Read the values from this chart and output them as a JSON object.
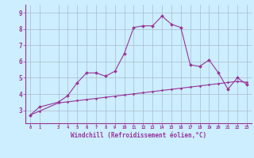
{
  "xlabel": "Windchill (Refroidissement éolien,°C)",
  "x_values": [
    0,
    1,
    3,
    4,
    5,
    6,
    7,
    8,
    9,
    10,
    11,
    12,
    13,
    14,
    15,
    16,
    17,
    18,
    19,
    20,
    21,
    22,
    23
  ],
  "y_main": [
    2.7,
    3.2,
    3.5,
    3.9,
    4.7,
    5.3,
    5.3,
    5.1,
    5.4,
    6.5,
    8.1,
    8.2,
    8.2,
    8.8,
    8.3,
    8.1,
    5.8,
    5.7,
    6.1,
    5.3,
    4.3,
    5.0,
    4.6
  ],
  "y_smooth": [
    2.7,
    2.95,
    3.45,
    3.52,
    3.59,
    3.66,
    3.73,
    3.8,
    3.87,
    3.94,
    4.01,
    4.08,
    4.15,
    4.22,
    4.29,
    4.36,
    4.43,
    4.5,
    4.57,
    4.64,
    4.71,
    4.78,
    4.72
  ],
  "line_color": "#993399",
  "bg_color": "#cceeff",
  "grid_color": "#aabbcc",
  "ylim": [
    2.2,
    9.5
  ],
  "yticks": [
    3,
    4,
    5,
    6,
    7,
    8,
    9
  ],
  "xticks": [
    0,
    1,
    3,
    4,
    5,
    6,
    7,
    8,
    9,
    10,
    11,
    12,
    13,
    14,
    15,
    16,
    17,
    18,
    19,
    20,
    21,
    22,
    23
  ],
  "xlim": [
    -0.5,
    23.5
  ]
}
